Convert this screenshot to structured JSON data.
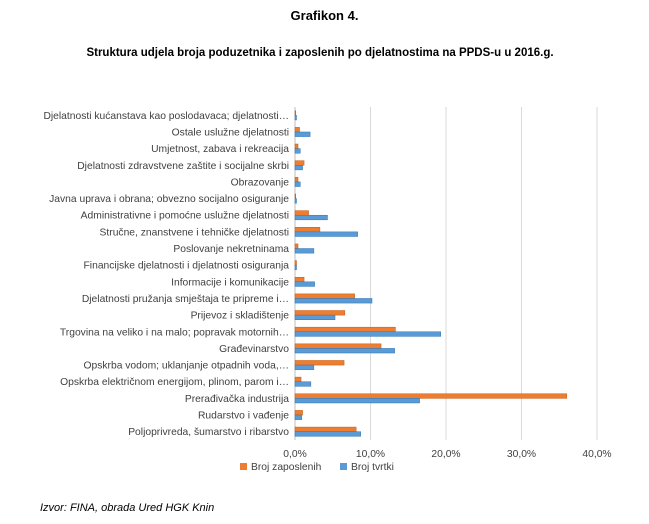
{
  "figure_label": "Grafikon 4.",
  "source_note": "Izvor:  FINA, obrada Ured HGK Knin",
  "colors": {
    "broj_zaposlenih": "#ED7D31",
    "broj_tvrtki": "#5B9BD5",
    "grid": "#D9D9D9",
    "axis": "#BFBFBF"
  },
  "chart_data": {
    "type": "bar",
    "orientation": "horizontal",
    "title": "Struktura udjela broja poduzetnika i zaposlenih po djelatnostima na PPDS-u u 2016.g.",
    "categories": [
      "Djelatnosti kućanstava kao poslodavaca; djelatnosti…",
      "Ostale uslužne djelatnosti",
      "Umjetnost, zabava i rekreacija",
      "Djelatnosti zdravstvene zaštite i socijalne skrbi",
      "Obrazovanje",
      "Javna uprava i obrana; obvezno socijalno osiguranje",
      "Administrativne i pomoćne uslužne djelatnosti",
      "Stručne, znanstvene i tehničke djelatnosti",
      "Poslovanje nekretninama",
      "Financijske djelatnosti i djelatnosti osiguranja",
      "Informacije i komunikacije",
      "Djelatnosti pružanja smještaja te pripreme i…",
      "Prijevoz i skladištenje",
      "Trgovina na veliko i na malo; popravak motornih…",
      "Građevinarstvo",
      "Opskrba vodom; uklanjanje otpadnih voda,…",
      "Opskrba električnom energijom, plinom, parom i…",
      "Prerađivačka industrija",
      "Rudarstvo i vađenje",
      "Poljoprivreda, šumarstvo i ribarstvo"
    ],
    "series": [
      {
        "name": "Broj zaposlenih",
        "values": [
          0.1,
          0.6,
          0.4,
          1.2,
          0.4,
          0.1,
          1.8,
          3.3,
          0.4,
          0.2,
          1.2,
          7.9,
          6.6,
          13.3,
          11.4,
          6.5,
          0.8,
          36.0,
          1.0,
          8.1
        ]
      },
      {
        "name": "Broj tvrtki",
        "values": [
          0.2,
          2.0,
          0.7,
          1.0,
          0.7,
          0.2,
          4.3,
          8.3,
          2.5,
          0.2,
          2.6,
          10.2,
          5.3,
          19.3,
          13.2,
          2.5,
          2.1,
          16.5,
          0.9,
          8.7
        ]
      }
    ],
    "xlim": [
      0,
      40
    ],
    "xticks": [
      "0,0%",
      "10,0%",
      "20,0%",
      "30,0%",
      "40,0%"
    ],
    "grid": true,
    "legend_position": "bottom"
  }
}
